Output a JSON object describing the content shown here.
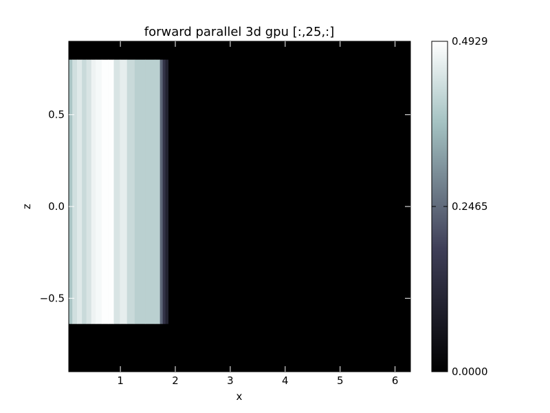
{
  "chart_data": {
    "type": "heatmap",
    "title": "forward parallel 3d gpu [:,25,:]",
    "xlabel": "x",
    "ylabel": "z",
    "xlim": [
      0.06,
      6.28
    ],
    "ylim": [
      -0.9,
      0.9
    ],
    "x_ticks": [
      1,
      2,
      3,
      4,
      5,
      6
    ],
    "y_ticks": [
      0.5,
      0.0,
      -0.5
    ],
    "y_tick_labels": [
      "0.5",
      "0.0",
      "−0.5"
    ],
    "colormap": "bone",
    "colorbar": {
      "min": 0.0,
      "max": 0.4929,
      "ticks": [
        0.4929,
        0.2465,
        0.0
      ],
      "tick_labels": [
        "0.4929",
        "0.2465",
        "0.0000"
      ]
    },
    "background_value": 0.0,
    "band": {
      "z_range": [
        -0.64,
        0.8
      ],
      "profile_x": [
        0.06,
        0.125,
        0.21,
        0.3,
        0.38,
        0.47,
        0.55,
        0.66,
        0.78,
        0.88,
        0.99,
        1.12,
        1.26,
        1.45,
        1.63,
        1.72,
        1.77,
        1.82,
        1.87
      ],
      "profile_values": [
        0.38,
        0.43,
        0.45,
        0.42,
        0.44,
        0.47,
        0.48,
        0.49,
        0.49,
        0.44,
        0.46,
        0.42,
        0.4,
        0.4,
        0.4,
        0.24,
        0.15,
        0.1,
        0.0
      ]
    }
  }
}
